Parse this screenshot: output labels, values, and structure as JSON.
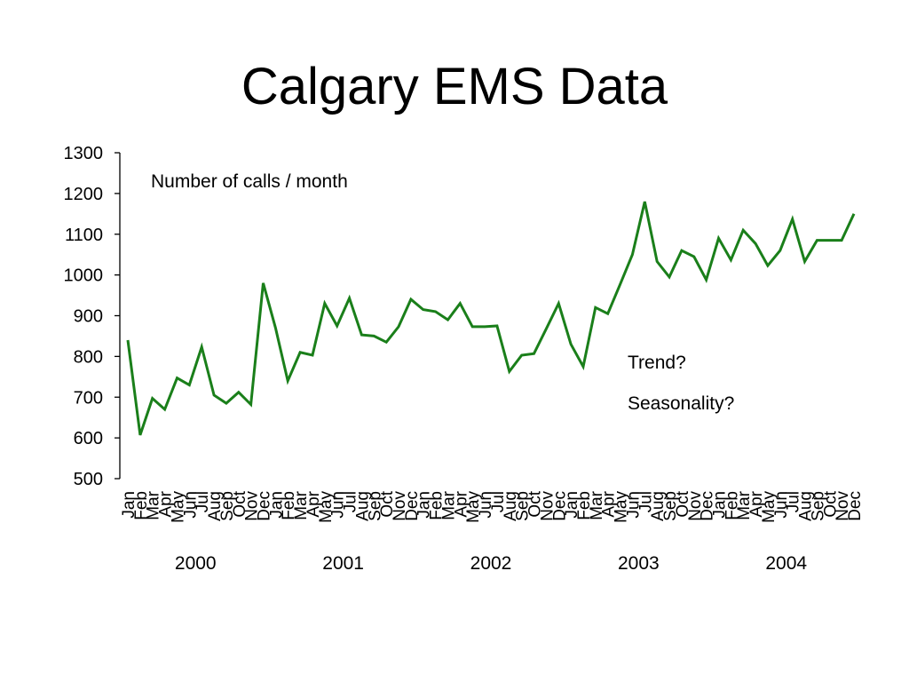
{
  "slide": {
    "title": "Calgary EMS Data"
  },
  "chart_data": {
    "type": "line",
    "title": "",
    "xlabel": "",
    "ylabel": "",
    "ylim": [
      500,
      1300
    ],
    "yticks": [
      500,
      600,
      700,
      800,
      900,
      1000,
      1100,
      1200,
      1300
    ],
    "grid": false,
    "line_color": "#1a7f1a",
    "years": [
      "2000",
      "2001",
      "2002",
      "2003",
      "2004"
    ],
    "months": [
      "Jan",
      "Feb",
      "Mar",
      "Apr",
      "May",
      "Jun",
      "Jul",
      "Aug",
      "Sep",
      "Oct",
      "Nov",
      "Dec"
    ],
    "series": [
      {
        "values": [
          840,
          607,
          697,
          670,
          747,
          730,
          823,
          705,
          685,
          712,
          682,
          980,
          870,
          740,
          810,
          803,
          930,
          875,
          943,
          853,
          850,
          835,
          873,
          940,
          915,
          910,
          890,
          930,
          873,
          873,
          875,
          763,
          803,
          807,
          868,
          930,
          830,
          775,
          920,
          905,
          977,
          1050,
          1180,
          1033,
          995,
          1060,
          1045,
          988,
          1090,
          1037,
          1110,
          1077,
          1023,
          1060,
          1137,
          1033,
          1085,
          1085,
          1085,
          1150
        ]
      }
    ],
    "annotations": [
      "Number of calls / month",
      "Trend?",
      "Seasonality?"
    ]
  }
}
